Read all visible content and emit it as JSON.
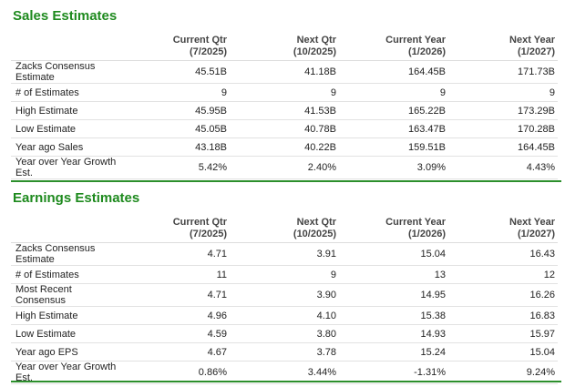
{
  "sections": [
    {
      "title": "Sales Estimates",
      "columns": [
        {
          "line1": "Current Qtr",
          "line2": "(7/2025)"
        },
        {
          "line1": "Next Qtr",
          "line2": "(10/2025)"
        },
        {
          "line1": "Current Year",
          "line2": "(1/2026)"
        },
        {
          "line1": "Next Year",
          "line2": "(1/2027)"
        }
      ],
      "rows": [
        {
          "label": "Zacks Consensus Estimate",
          "values": [
            "45.51B",
            "41.18B",
            "164.45B",
            "171.73B"
          ]
        },
        {
          "label": "# of Estimates",
          "values": [
            "9",
            "9",
            "9",
            "9"
          ]
        },
        {
          "label": "High Estimate",
          "values": [
            "45.95B",
            "41.53B",
            "165.22B",
            "173.29B"
          ]
        },
        {
          "label": "Low Estimate",
          "values": [
            "45.05B",
            "40.78B",
            "163.47B",
            "170.28B"
          ]
        },
        {
          "label": "Year ago Sales",
          "values": [
            "43.18B",
            "40.22B",
            "159.51B",
            "164.45B"
          ]
        },
        {
          "label": "Year over Year Growth Est.",
          "values": [
            "5.42%",
            "2.40%",
            "3.09%",
            "4.43%"
          ]
        }
      ]
    },
    {
      "title": "Earnings Estimates",
      "columns": [
        {
          "line1": "Current Qtr",
          "line2": "(7/2025)"
        },
        {
          "line1": "Next Qtr",
          "line2": "(10/2025)"
        },
        {
          "line1": "Current Year",
          "line2": "(1/2026)"
        },
        {
          "line1": "Next Year",
          "line2": "(1/2027)"
        }
      ],
      "rows": [
        {
          "label": "Zacks Consensus Estimate",
          "values": [
            "4.71",
            "3.91",
            "15.04",
            "16.43"
          ]
        },
        {
          "label": "# of Estimates",
          "values": [
            "11",
            "9",
            "13",
            "12"
          ]
        },
        {
          "label": "Most Recent Consensus",
          "values": [
            "4.71",
            "3.90",
            "14.95",
            "16.26"
          ]
        },
        {
          "label": "High Estimate",
          "values": [
            "4.96",
            "4.10",
            "15.38",
            "16.83"
          ]
        },
        {
          "label": "Low Estimate",
          "values": [
            "4.59",
            "3.80",
            "14.93",
            "15.97"
          ]
        },
        {
          "label": "Year ago EPS",
          "values": [
            "4.67",
            "3.78",
            "15.24",
            "15.04"
          ]
        },
        {
          "label": "Year over Year Growth Est.",
          "values": [
            "0.86%",
            "3.44%",
            "-1.31%",
            "9.24%"
          ]
        }
      ]
    }
  ]
}
